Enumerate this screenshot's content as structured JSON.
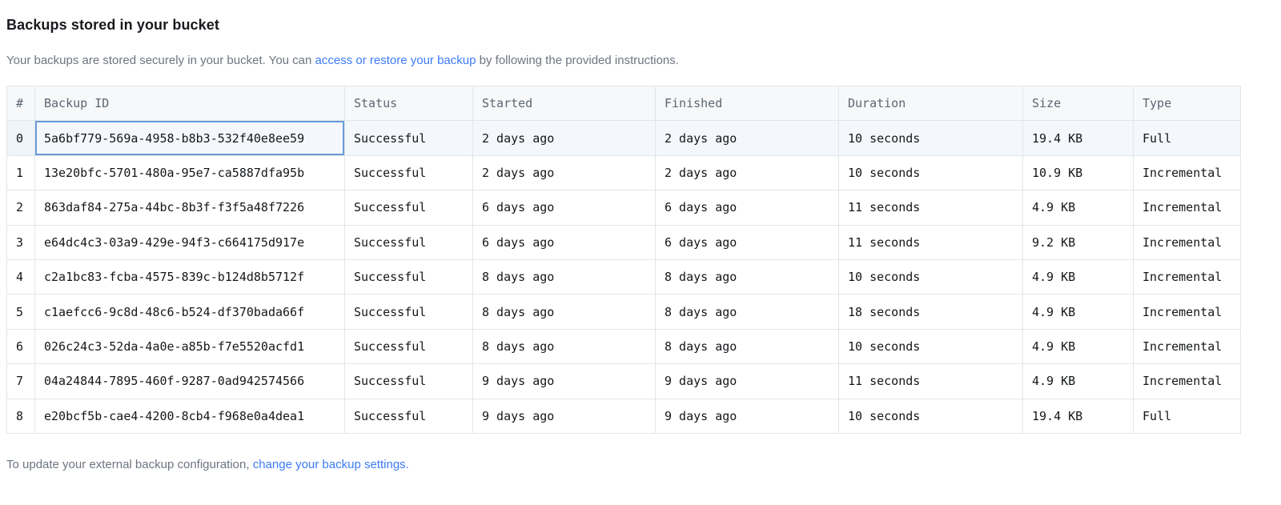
{
  "header": {
    "title": "Backups stored in your bucket",
    "intro_before": "Your backups are stored securely in your bucket. You can ",
    "intro_link": "access or restore your backup",
    "intro_after": " by following the provided instructions."
  },
  "table": {
    "columns": [
      "#",
      "Backup ID",
      "Status",
      "Started",
      "Finished",
      "Duration",
      "Size",
      "Type"
    ],
    "selection": {
      "row": 0,
      "column": "id"
    },
    "rows": [
      {
        "index": "0",
        "id": "5a6bf779-569a-4958-b8b3-532f40e8ee59",
        "status": "Successful",
        "started": "2 days ago",
        "finished": "2 days ago",
        "duration": "10 seconds",
        "size": "19.4 KB",
        "type": "Full"
      },
      {
        "index": "1",
        "id": "13e20bfc-5701-480a-95e7-ca5887dfa95b",
        "status": "Successful",
        "started": "2 days ago",
        "finished": "2 days ago",
        "duration": "10 seconds",
        "size": "10.9 KB",
        "type": "Incremental"
      },
      {
        "index": "2",
        "id": "863daf84-275a-44bc-8b3f-f3f5a48f7226",
        "status": "Successful",
        "started": "6 days ago",
        "finished": "6 days ago",
        "duration": "11 seconds",
        "size": "4.9 KB",
        "type": "Incremental"
      },
      {
        "index": "3",
        "id": "e64dc4c3-03a9-429e-94f3-c664175d917e",
        "status": "Successful",
        "started": "6 days ago",
        "finished": "6 days ago",
        "duration": "11 seconds",
        "size": "9.2 KB",
        "type": "Incremental"
      },
      {
        "index": "4",
        "id": "c2a1bc83-fcba-4575-839c-b124d8b5712f",
        "status": "Successful",
        "started": "8 days ago",
        "finished": "8 days ago",
        "duration": "10 seconds",
        "size": "4.9 KB",
        "type": "Incremental"
      },
      {
        "index": "5",
        "id": "c1aefcc6-9c8d-48c6-b524-df370bada66f",
        "status": "Successful",
        "started": "8 days ago",
        "finished": "8 days ago",
        "duration": "18 seconds",
        "size": "4.9 KB",
        "type": "Incremental"
      },
      {
        "index": "6",
        "id": "026c24c3-52da-4a0e-a85b-f7e5520acfd1",
        "status": "Successful",
        "started": "8 days ago",
        "finished": "8 days ago",
        "duration": "10 seconds",
        "size": "4.9 KB",
        "type": "Incremental"
      },
      {
        "index": "7",
        "id": "04a24844-7895-460f-9287-0ad942574566",
        "status": "Successful",
        "started": "9 days ago",
        "finished": "9 days ago",
        "duration": "11 seconds",
        "size": "4.9 KB",
        "type": "Incremental"
      },
      {
        "index": "8",
        "id": "e20bcf5b-cae4-4200-8cb4-f968e0a4dea1",
        "status": "Successful",
        "started": "9 days ago",
        "finished": "9 days ago",
        "duration": "10 seconds",
        "size": "19.4 KB",
        "type": "Full"
      }
    ]
  },
  "footer": {
    "before": "To update your external backup configuration, ",
    "link": "change your backup settings."
  },
  "colors": {
    "link_blue": "#3b7bf7",
    "focused_cell_border": "#699bd8",
    "header_bg": "#f6f8fa",
    "grid_line": "#e2e5e9"
  }
}
